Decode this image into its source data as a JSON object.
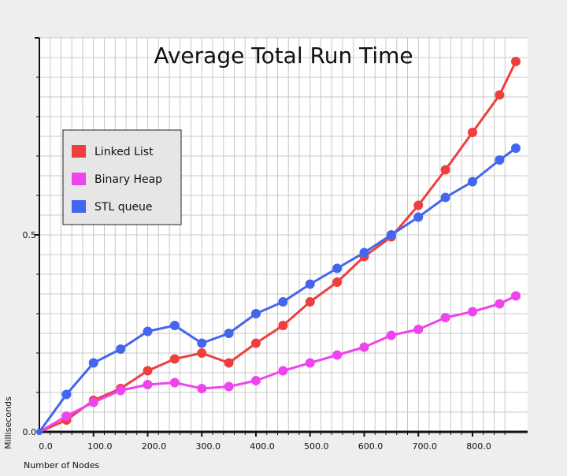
{
  "chart_data": {
    "type": "line",
    "title": "Average Total Run Time",
    "xlabel": "Number of Nodes",
    "ylabel": "Milliseconds",
    "xlim": [
      0,
      870
    ],
    "ylim": [
      0,
      1.0
    ],
    "grid": true,
    "legend_position": "top-left",
    "x_ticks": [
      {
        "value": 0,
        "label": "0.0"
      },
      {
        "value": 100,
        "label": "100.0"
      },
      {
        "value": 200,
        "label": "200.0"
      },
      {
        "value": 300,
        "label": "300.0"
      },
      {
        "value": 400,
        "label": "400.0"
      },
      {
        "value": 500,
        "label": "500.0"
      },
      {
        "value": 600,
        "label": "600.0"
      },
      {
        "value": 700,
        "label": "700.0"
      },
      {
        "value": 800,
        "label": "800.0"
      }
    ],
    "y_ticks": [
      {
        "value": 0,
        "label": "0.0"
      },
      {
        "value": 0.5,
        "label": "0.5"
      }
    ],
    "x": [
      0,
      50,
      100,
      150,
      200,
      250,
      300,
      350,
      400,
      450,
      500,
      550,
      600,
      650,
      700,
      750,
      800,
      850,
      880
    ],
    "series": [
      {
        "name": "Linked List",
        "color": "#ee3f3f",
        "values": [
          0.0,
          0.03,
          0.08,
          0.11,
          0.155,
          0.185,
          0.2,
          0.175,
          0.225,
          0.27,
          0.33,
          0.38,
          0.445,
          0.495,
          0.575,
          0.665,
          0.76,
          0.855,
          0.94
        ]
      },
      {
        "name": "Binary Heap",
        "color": "#ee44ee",
        "values": [
          0.0,
          0.04,
          0.075,
          0.105,
          0.12,
          0.125,
          0.11,
          0.115,
          0.13,
          0.155,
          0.175,
          0.195,
          0.215,
          0.245,
          0.26,
          0.29,
          0.305,
          0.325,
          0.345
        ]
      },
      {
        "name": "STL queue",
        "color": "#4466ee",
        "values": [
          0.0,
          0.095,
          0.175,
          0.21,
          0.255,
          0.27,
          0.225,
          0.25,
          0.3,
          0.33,
          0.375,
          0.415,
          0.455,
          0.5,
          0.545,
          0.595,
          0.635,
          0.69,
          0.72
        ]
      }
    ]
  }
}
